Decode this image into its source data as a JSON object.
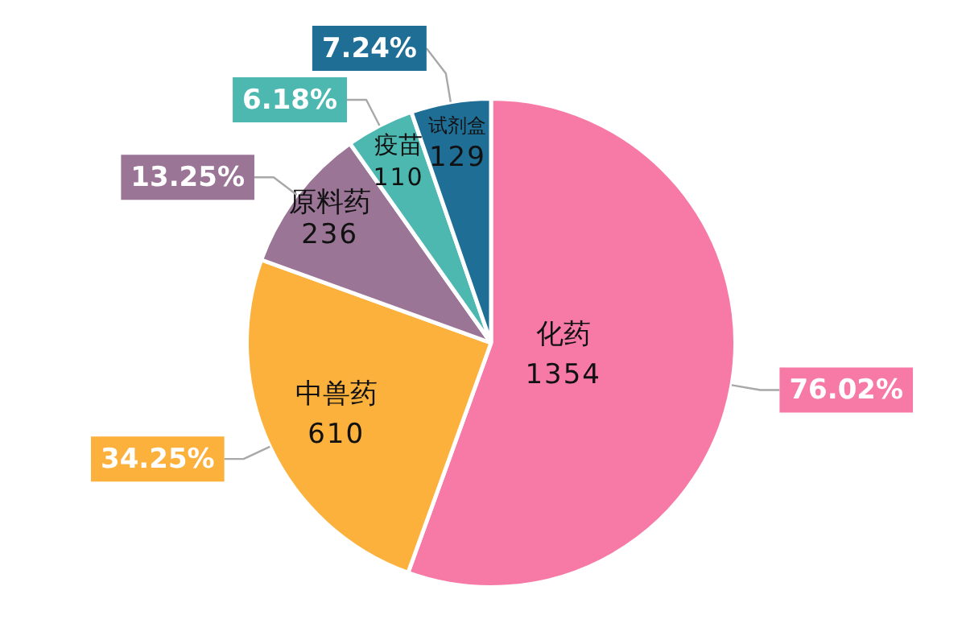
{
  "chart_data": {
    "type": "pie",
    "categories": [
      "化药",
      "中兽药",
      "原料药",
      "疫苗",
      "试剂盒"
    ],
    "values": [
      1354,
      610,
      236,
      110,
      129
    ],
    "colors": [
      "#f77aa6",
      "#fbb13c",
      "#9a7596",
      "#4cb8b0",
      "#1f6e96"
    ],
    "data_labels": true,
    "annotations": [
      {
        "text": "76.02%",
        "x": "化药"
      },
      {
        "text": "34.25%",
        "x": "中兽药"
      },
      {
        "text": "13.25%",
        "x": "原料药"
      },
      {
        "text": "6.18%",
        "x": "疫苗"
      },
      {
        "text": "7.24%",
        "x": "试剂盒"
      }
    ]
  }
}
